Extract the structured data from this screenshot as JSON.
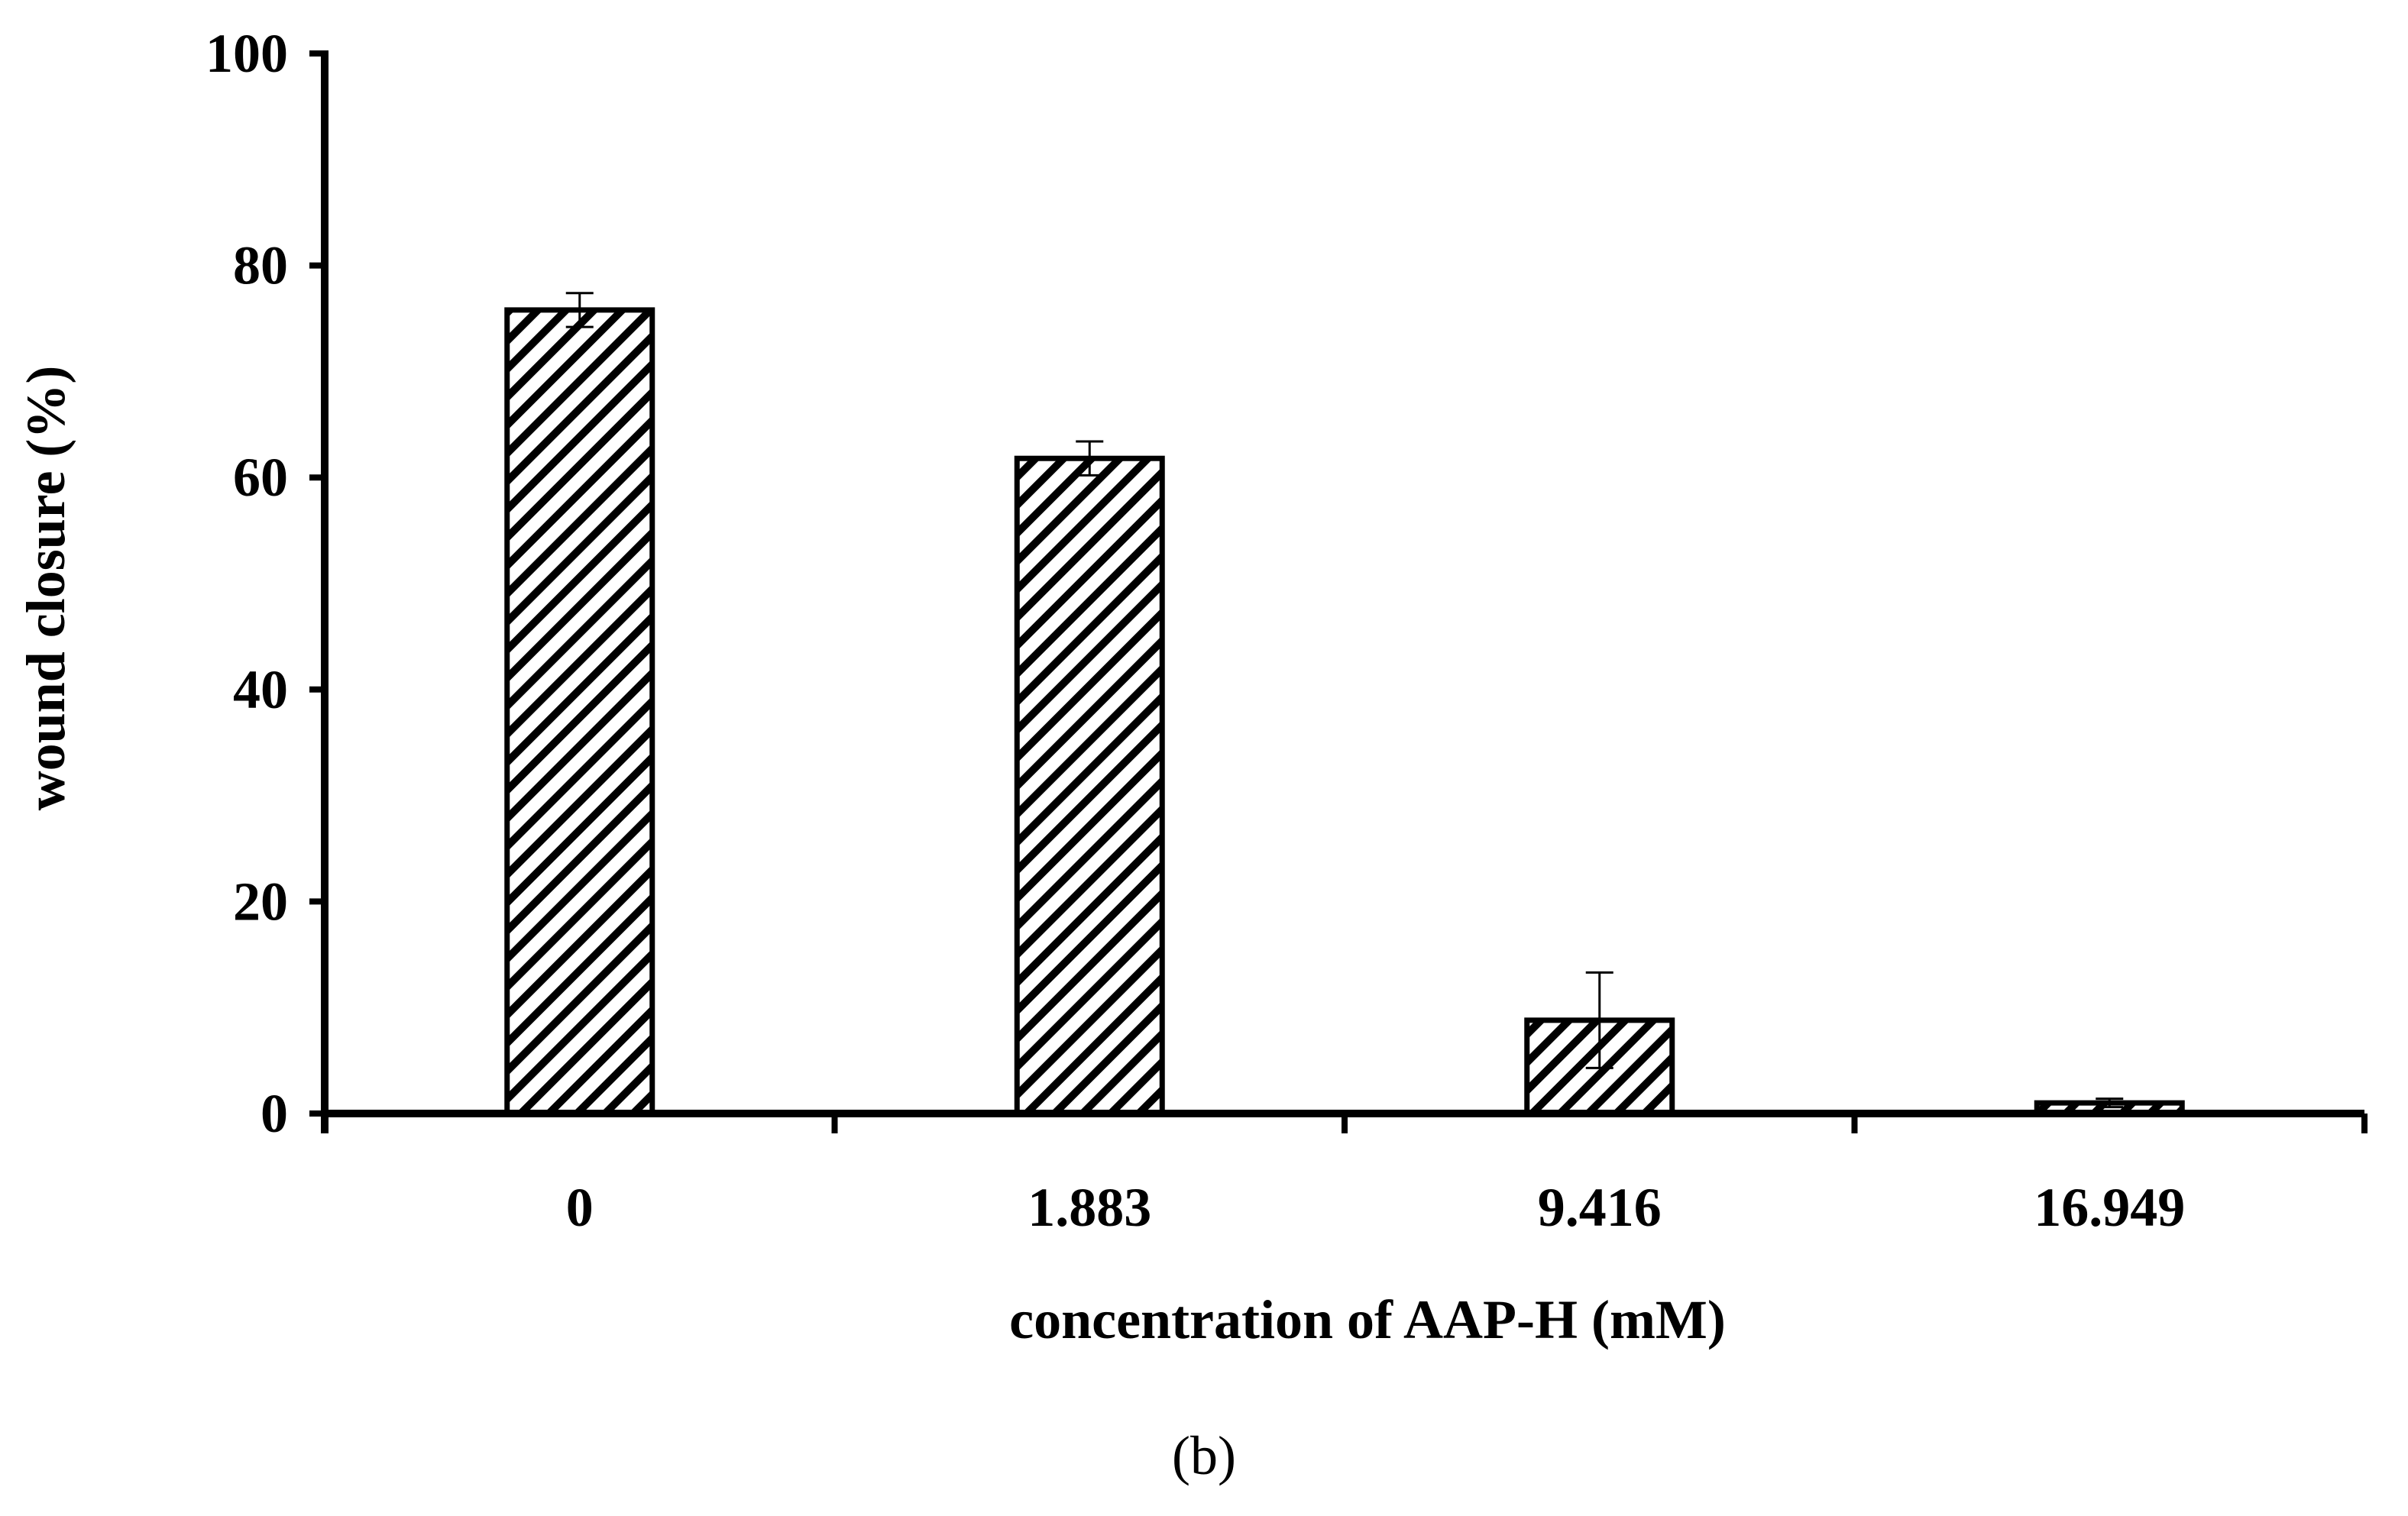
{
  "chart_data": {
    "type": "bar",
    "title": "",
    "xlabel": "concentration of AAP-H (mM)",
    "ylabel": "wound closure (%)",
    "categories": [
      "0",
      "1.883",
      "9.416",
      "16.949"
    ],
    "series": [
      {
        "values": [
          75.8,
          61.8,
          8.8,
          1.0
        ],
        "error": [
          1.6,
          1.6,
          4.5,
          0.4
        ]
      }
    ],
    "ylim": [
      0,
      100
    ],
    "yticks": [
      0,
      20,
      40,
      60,
      80,
      100
    ],
    "grid": false,
    "legend": "none",
    "bar_pattern": "diagonal-hatch",
    "colors": {
      "bar_fill": "#ffffff",
      "hatch": "#000000",
      "axis": "#000000"
    }
  },
  "caption": "(b)"
}
